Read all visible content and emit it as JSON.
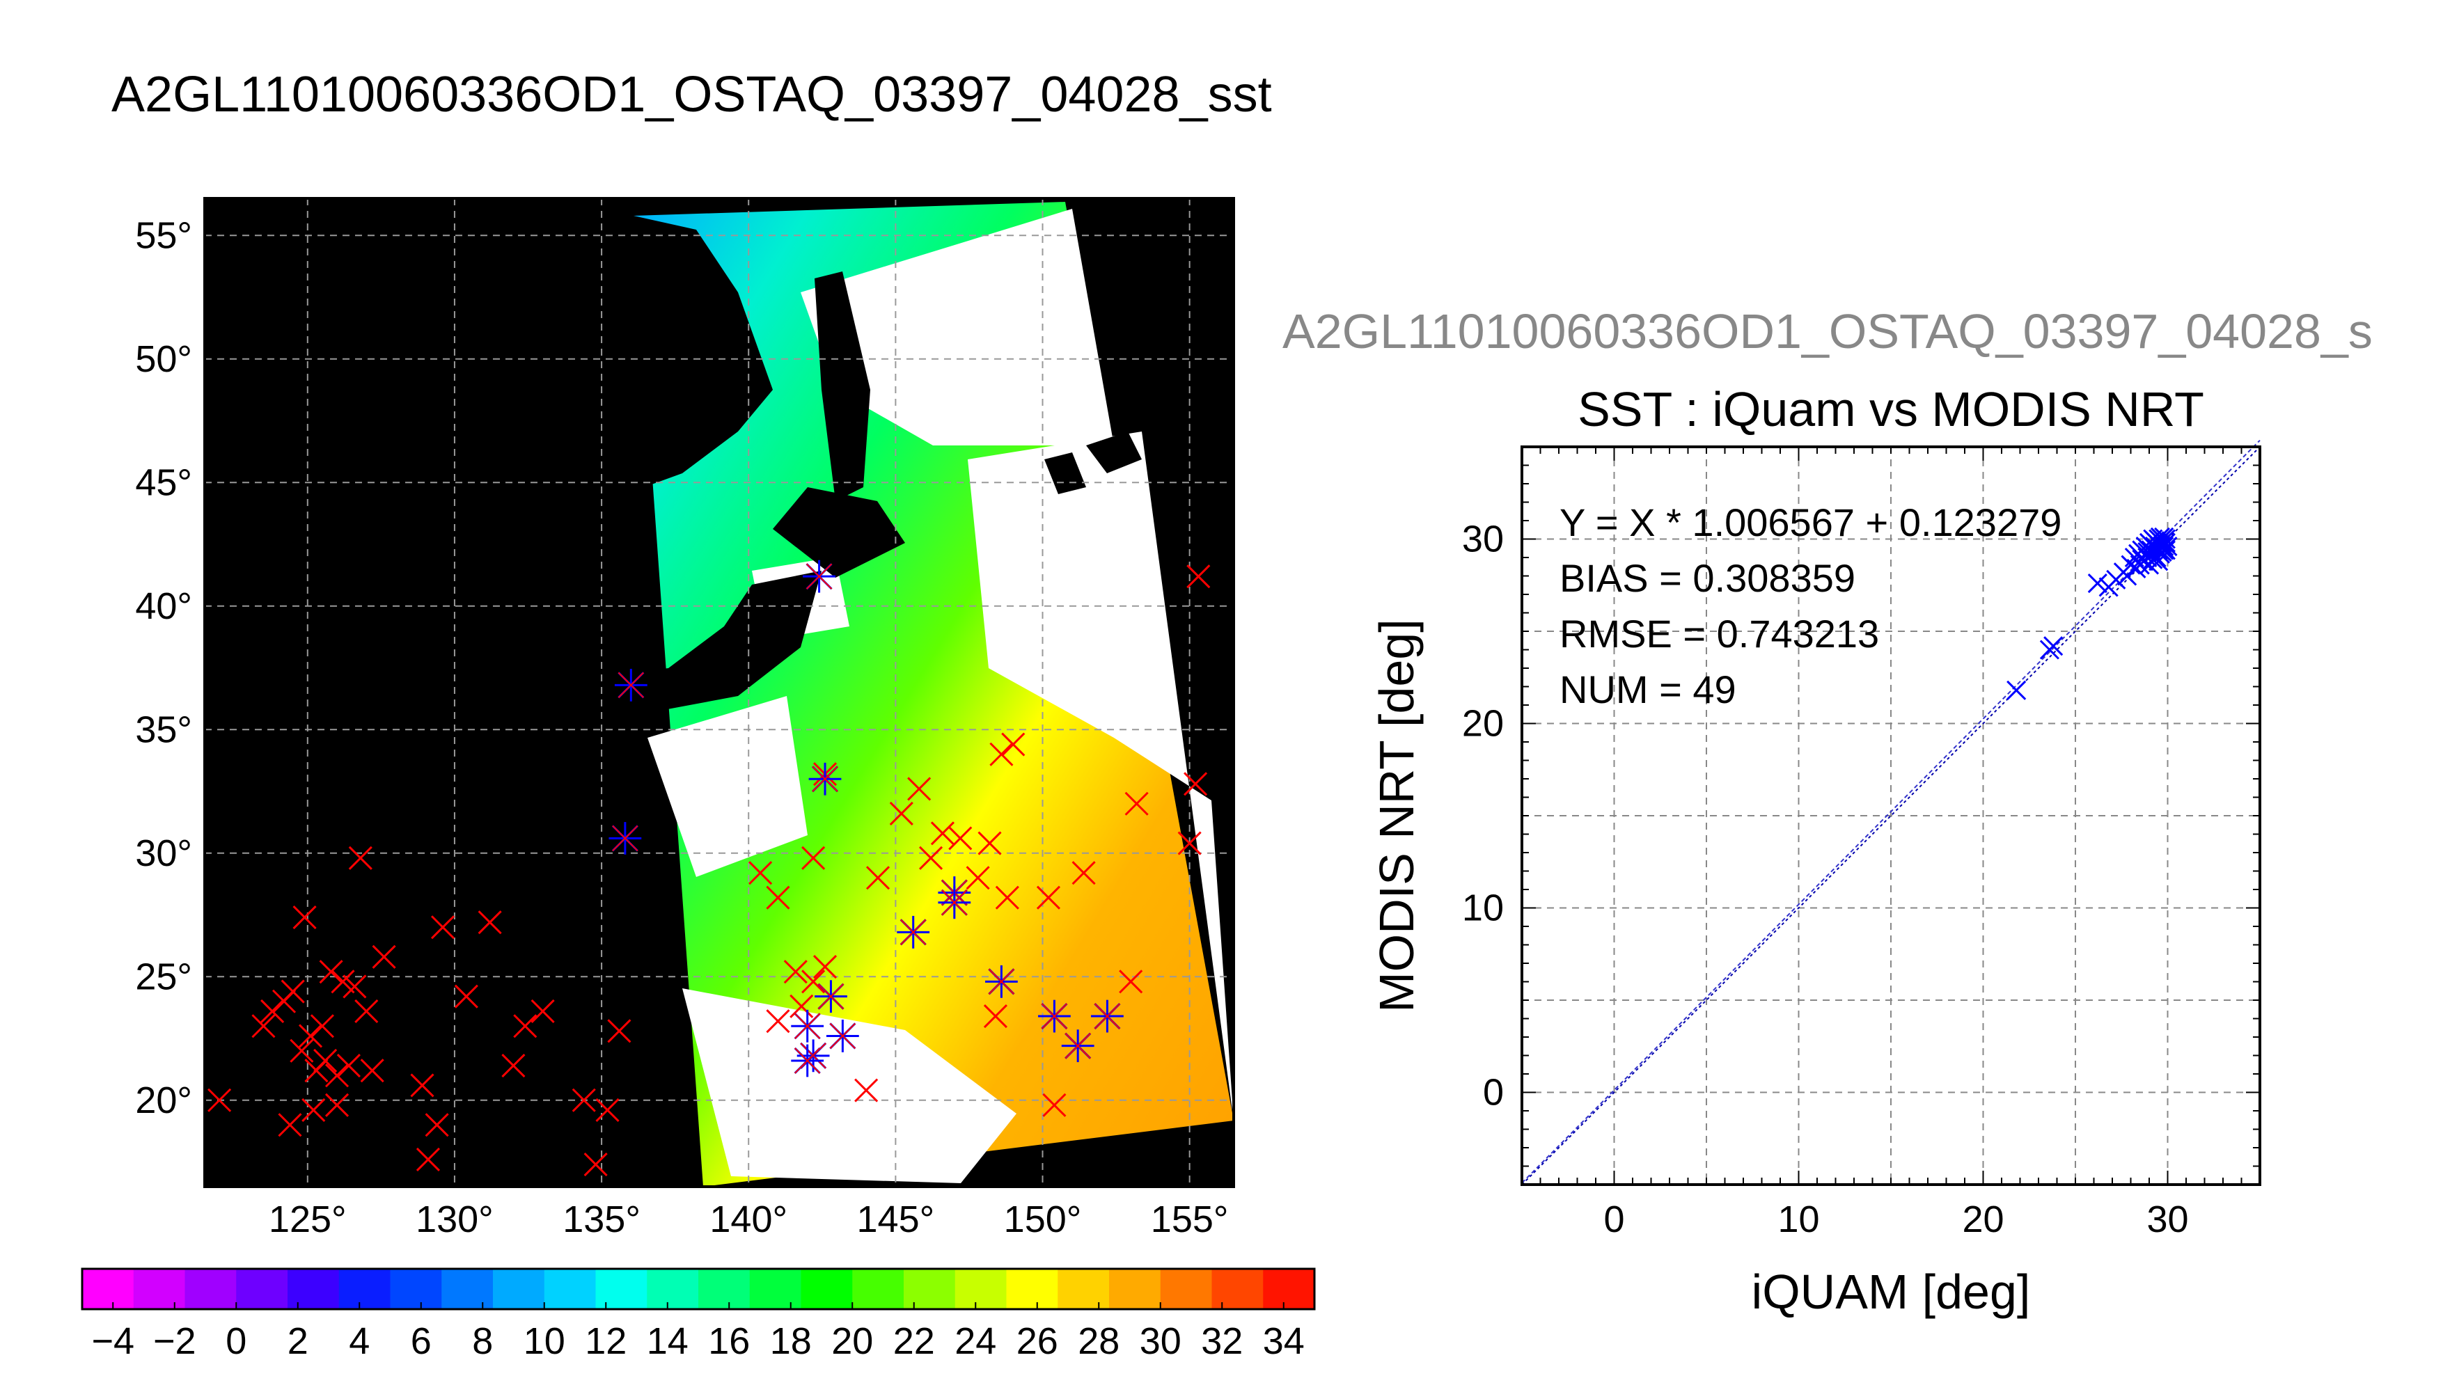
{
  "page": {
    "title": "A2GL11010060336OD1_OSTAQ_03397_04028_sst",
    "subtitle": "A2GL11010060336OD1_OSTAQ_03397_04028_s"
  },
  "map": {
    "lon_ticks": [
      125,
      130,
      135,
      140,
      145,
      150,
      155
    ],
    "lat_ticks": [
      20,
      25,
      30,
      35,
      40,
      45,
      50,
      55
    ],
    "degree_symbol": "°",
    "lon_range": [
      121.5,
      156.5
    ],
    "lat_range": [
      16.5,
      56.5
    ],
    "land_color": "#000000",
    "cloud_color": "#ffffff",
    "marker_color_outside": "#ff0000",
    "marker_color_matched": "#0000ff",
    "markers_outside": [
      [
        122.0,
        20.0
      ],
      [
        123.5,
        23.0
      ],
      [
        123.8,
        23.6
      ],
      [
        124.2,
        24.0
      ],
      [
        124.5,
        24.4
      ],
      [
        124.8,
        22.0
      ],
      [
        124.9,
        27.4
      ],
      [
        125.1,
        22.6
      ],
      [
        125.3,
        21.2
      ],
      [
        125.5,
        23.0
      ],
      [
        125.6,
        21.6
      ],
      [
        125.8,
        25.2
      ],
      [
        126.0,
        21.0
      ],
      [
        126.2,
        24.8
      ],
      [
        126.4,
        21.4
      ],
      [
        126.6,
        24.6
      ],
      [
        126.8,
        29.8
      ],
      [
        127.0,
        23.6
      ],
      [
        127.2,
        21.2
      ],
      [
        127.6,
        25.8
      ],
      [
        128.9,
        20.6
      ],
      [
        129.1,
        17.6
      ],
      [
        129.4,
        19.0
      ],
      [
        129.6,
        27.0
      ],
      [
        130.4,
        24.2
      ],
      [
        131.2,
        27.2
      ],
      [
        132.0,
        21.4
      ],
      [
        132.4,
        23.0
      ],
      [
        133.0,
        23.6
      ],
      [
        134.4,
        20.0
      ],
      [
        134.8,
        17.4
      ],
      [
        135.2,
        19.6
      ],
      [
        135.6,
        22.8
      ],
      [
        124.4,
        19.0
      ],
      [
        125.2,
        19.6
      ],
      [
        126.0,
        19.8
      ],
      [
        155.3,
        41.2
      ],
      [
        155.2,
        32.8
      ],
      [
        155.0,
        30.4
      ],
      [
        153.2,
        32.0
      ],
      [
        153.0,
        24.8
      ],
      [
        151.4,
        29.2
      ],
      [
        150.2,
        28.2
      ],
      [
        150.4,
        19.8
      ],
      [
        149.0,
        34.4
      ],
      [
        148.6,
        34.0
      ],
      [
        148.8,
        28.2
      ],
      [
        148.2,
        30.4
      ],
      [
        148.4,
        23.4
      ],
      [
        147.8,
        29.0
      ],
      [
        147.2,
        30.6
      ],
      [
        146.6,
        30.8
      ],
      [
        146.2,
        29.8
      ],
      [
        145.8,
        32.6
      ],
      [
        145.2,
        31.6
      ],
      [
        144.4,
        29.0
      ],
      [
        144.0,
        20.4
      ],
      [
        142.6,
        25.4
      ],
      [
        142.2,
        24.8
      ],
      [
        141.8,
        23.8
      ],
      [
        141.6,
        25.2
      ],
      [
        141.0,
        23.2
      ],
      [
        140.4,
        29.2
      ],
      [
        141.0,
        28.2
      ],
      [
        142.2,
        29.8
      ],
      [
        142.6,
        33.2
      ]
    ],
    "markers_matched": [
      [
        136.0,
        36.8
      ],
      [
        135.8,
        30.6
      ],
      [
        142.4,
        41.2
      ],
      [
        142.6,
        33.0
      ],
      [
        145.6,
        26.8
      ],
      [
        147.0,
        28.4
      ],
      [
        147.0,
        28.0
      ],
      [
        148.6,
        24.8
      ],
      [
        150.4,
        23.4
      ],
      [
        151.2,
        22.2
      ],
      [
        152.2,
        23.4
      ],
      [
        142.8,
        24.2
      ],
      [
        142.0,
        23.0
      ],
      [
        142.2,
        21.8
      ],
      [
        143.2,
        22.6
      ],
      [
        142.0,
        21.6
      ]
    ]
  },
  "colorbar": {
    "tick_labels": [
      "−4",
      "−2",
      "0",
      "2",
      "4",
      "6",
      "8",
      "10",
      "12",
      "14",
      "16",
      "18",
      "20",
      "22",
      "24",
      "26",
      "28",
      "30",
      "32",
      "34"
    ],
    "min": -5,
    "max": 35,
    "step": 2,
    "colors": [
      "#ff00ff",
      "#d200ff",
      "#a000ff",
      "#6e00ff",
      "#3c00ff",
      "#0a1eff",
      "#0046ff",
      "#0078ff",
      "#00aaff",
      "#00d2ff",
      "#00ffee",
      "#00ffb4",
      "#00ff78",
      "#00ff3c",
      "#00ff00",
      "#46ff00",
      "#8cff00",
      "#c8ff00",
      "#ffff00",
      "#ffd200",
      "#ffaa00",
      "#ff7800",
      "#ff4600",
      "#ff1400"
    ]
  },
  "chart_data": {
    "type": "scatter",
    "title": "SST : iQuam vs MODIS NRT",
    "xlabel": "iQUAM [deg]",
    "ylabel": "MODIS NRT [deg]",
    "xlim": [
      -5,
      35
    ],
    "ylim": [
      -5,
      35
    ],
    "xticks": [
      0,
      10,
      20,
      30
    ],
    "yticks": [
      0,
      10,
      20,
      30
    ],
    "grid": true,
    "annotations": [
      "Y = X * 1.006567 + 0.123279",
      "BIAS = 0.308359",
      "RMSE = 0.743213",
      "NUM = 49"
    ],
    "fit": {
      "slope": 1.006567,
      "intercept": 0.123279
    },
    "marker_color": "#0000ff",
    "points": [
      [
        21.8,
        21.8
      ],
      [
        23.6,
        24.0
      ],
      [
        23.8,
        24.2
      ],
      [
        26.2,
        27.6
      ],
      [
        26.8,
        27.4
      ],
      [
        27.2,
        27.8
      ],
      [
        27.6,
        28.2
      ],
      [
        27.8,
        28.0
      ],
      [
        28.0,
        28.6
      ],
      [
        28.2,
        29.0
      ],
      [
        28.3,
        28.4
      ],
      [
        28.4,
        29.2
      ],
      [
        28.6,
        29.4
      ],
      [
        28.7,
        28.8
      ],
      [
        28.8,
        29.6
      ],
      [
        28.9,
        29.0
      ],
      [
        29.0,
        29.8
      ],
      [
        29.0,
        28.6
      ],
      [
        29.1,
        29.4
      ],
      [
        29.2,
        30.0
      ],
      [
        29.2,
        29.2
      ],
      [
        29.3,
        29.6
      ],
      [
        29.4,
        29.8
      ],
      [
        29.4,
        29.0
      ],
      [
        29.5,
        30.0
      ],
      [
        29.5,
        29.4
      ],
      [
        29.6,
        29.6
      ],
      [
        29.6,
        29.2
      ],
      [
        29.7,
        29.8
      ],
      [
        29.7,
        30.0
      ],
      [
        29.8,
        29.6
      ],
      [
        29.8,
        29.4
      ],
      [
        29.9,
        29.8
      ],
      [
        29.9,
        30.0
      ],
      [
        30.0,
        29.6
      ],
      [
        29.5,
        28.8
      ],
      [
        28.5,
        28.6
      ],
      [
        29.0,
        29.4
      ],
      [
        29.3,
        29.9
      ],
      [
        29.6,
        30.1
      ],
      [
        28.9,
        29.3
      ],
      [
        29.4,
        29.5
      ],
      [
        29.7,
        29.3
      ],
      [
        29.2,
        28.9
      ],
      [
        29.8,
        30.1
      ],
      [
        28.6,
        28.9
      ],
      [
        29.1,
        29.7
      ],
      [
        29.5,
        29.7
      ],
      [
        29.9,
        29.4
      ]
    ]
  }
}
